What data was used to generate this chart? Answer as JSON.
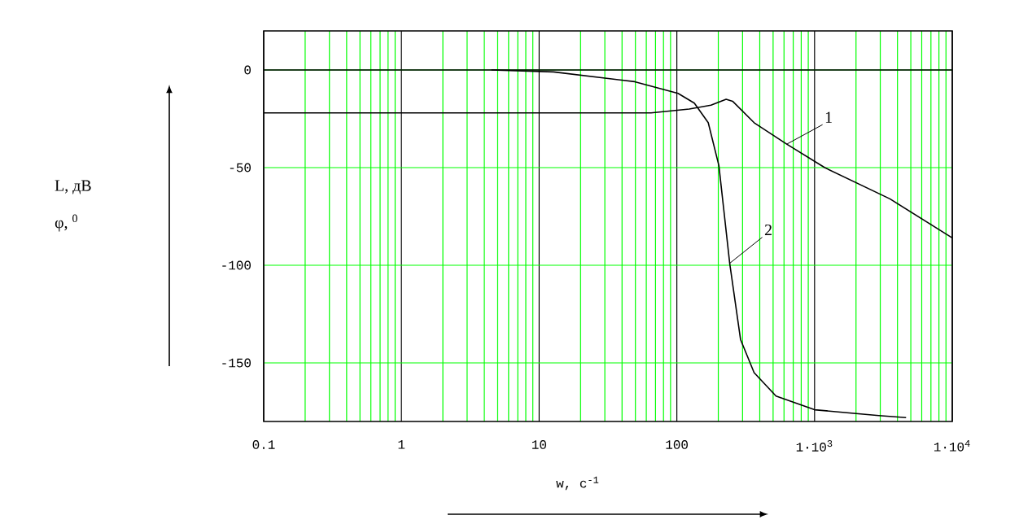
{
  "chart_data": {
    "type": "line",
    "xlabel": "w, c$^{-1}$",
    "annotations": [
      "L, дВ",
      "φ, $^{0}$"
    ],
    "log": "x",
    "xlim": [
      0.1,
      10000
    ],
    "ylim": [
      -180,
      20
    ],
    "xticks": [
      0.1,
      1,
      10,
      100,
      {
        "value": 1000,
        "label": "1·10$^{3}$"
      },
      {
        "value": 10000,
        "label": "1·10$^{4}$"
      }
    ],
    "yticks": [
      0,
      -50,
      -100,
      -150
    ],
    "grid": true,
    "ref_lines": [
      {
        "axis": "y",
        "value": 0,
        "color": "#000000"
      }
    ],
    "series": [
      {
        "name": "1",
        "color": "#000000",
        "x": [
          0.1,
          65,
          123,
          177,
          228,
          254,
          364,
          628,
          1186,
          3524,
          10000
        ],
        "values": [
          -22,
          -22,
          -20,
          -18,
          -15,
          -16,
          -27,
          -38,
          -50,
          -66,
          -86
        ]
      },
      {
        "name": "2",
        "color": "#000000",
        "x": [
          4.5,
          12.7,
          49.5,
          102,
          134,
          169,
          202,
          242,
          290,
          364,
          525,
          1000,
          2930,
          4620
        ],
        "values": [
          0,
          -1,
          -6,
          -12,
          -17,
          -27,
          -49,
          -99,
          -138,
          -155,
          -167,
          -174,
          -177,
          -178
        ]
      }
    ]
  }
}
